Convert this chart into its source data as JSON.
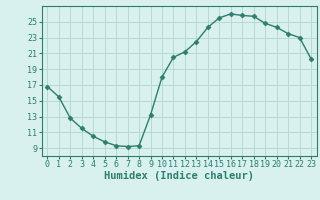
{
  "x": [
    0,
    1,
    2,
    3,
    4,
    5,
    6,
    7,
    8,
    9,
    10,
    11,
    12,
    13,
    14,
    15,
    16,
    17,
    18,
    19,
    20,
    21,
    22,
    23
  ],
  "y": [
    16.8,
    15.5,
    12.8,
    11.5,
    10.5,
    9.8,
    9.3,
    9.2,
    9.3,
    13.2,
    18.0,
    20.5,
    21.2,
    22.5,
    24.3,
    25.5,
    26.0,
    25.8,
    25.7,
    24.8,
    24.3,
    23.5,
    23.0,
    20.3
  ],
  "line_color": "#2e7d6e",
  "marker": "D",
  "marker_size": 2.5,
  "bg_color": "#d8f0ee",
  "grid_color": "#b8d8d4",
  "xlabel": "Humidex (Indice chaleur)",
  "xlim": [
    -0.5,
    23.5
  ],
  "ylim": [
    8.0,
    27.0
  ],
  "yticks": [
    9,
    11,
    13,
    15,
    17,
    19,
    21,
    23,
    25
  ],
  "xticks": [
    0,
    1,
    2,
    3,
    4,
    5,
    6,
    7,
    8,
    9,
    10,
    11,
    12,
    13,
    14,
    15,
    16,
    17,
    18,
    19,
    20,
    21,
    22,
    23
  ],
  "tick_label_fontsize": 6.0,
  "xlabel_fontsize": 7.5,
  "linewidth": 1.0
}
